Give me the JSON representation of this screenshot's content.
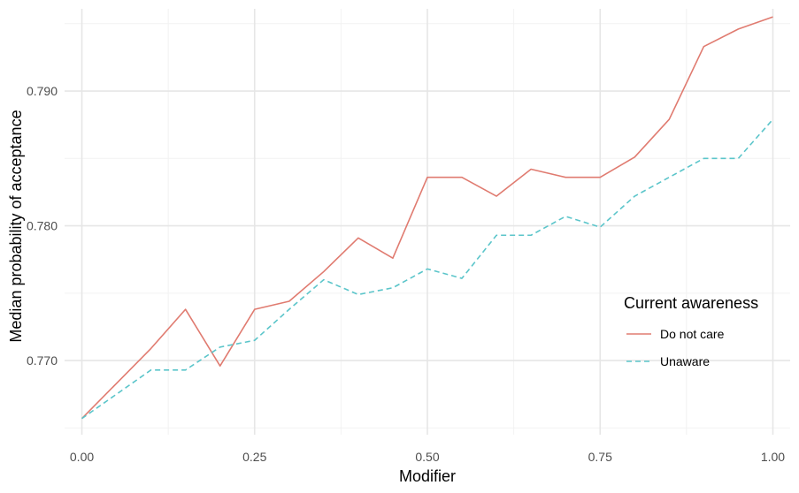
{
  "chart_data": {
    "type": "line",
    "title": "",
    "xlabel": "Modifier",
    "ylabel": "Median probability of acceptance",
    "x": [
      0.0,
      0.05,
      0.1,
      0.15,
      0.2,
      0.25,
      0.3,
      0.35,
      0.4,
      0.45,
      0.5,
      0.55,
      0.6,
      0.65,
      0.7,
      0.75,
      0.8,
      0.85,
      0.9,
      0.95,
      1.0
    ],
    "xlim": [
      -0.025,
      1.025
    ],
    "ylim": [
      0.7645,
      0.7961
    ],
    "xticks": [
      0.0,
      0.25,
      0.5,
      0.75,
      1.0
    ],
    "xtick_labels": [
      "0.00",
      "0.25",
      "0.50",
      "0.75",
      "1.00"
    ],
    "yticks": [
      0.77,
      0.78,
      0.79
    ],
    "ytick_labels": [
      "0.770",
      "0.780",
      "0.790"
    ],
    "grid": true,
    "legend": {
      "title": "Current awareness",
      "position": "right"
    },
    "series": [
      {
        "name": "Do not care",
        "color": "#E07B70",
        "dash": "solid",
        "values": [
          0.7657,
          0.7683,
          0.7709,
          0.7738,
          0.7696,
          0.7738,
          0.7744,
          0.7766,
          0.7791,
          0.7776,
          0.7836,
          0.7836,
          0.7822,
          0.7842,
          0.7836,
          0.7836,
          0.7851,
          0.7879,
          0.7933,
          0.7946,
          0.7955
        ]
      },
      {
        "name": "Unaware",
        "color": "#5BC5CA",
        "dash": "dashed",
        "values": [
          0.7657,
          0.7675,
          0.7693,
          0.7693,
          0.771,
          0.7715,
          0.7738,
          0.776,
          0.7749,
          0.7754,
          0.7768,
          0.7761,
          0.7793,
          0.7793,
          0.7807,
          0.7799,
          0.7822,
          0.7836,
          0.785,
          0.785,
          0.7879
        ]
      }
    ]
  }
}
